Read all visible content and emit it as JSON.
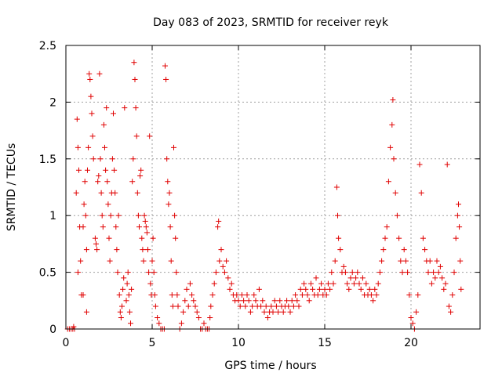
{
  "chart_data": {
    "type": "scatter",
    "title": "Day 083 of 2023, SRMTID for receiver reyk",
    "xlabel": "GPS time / hours",
    "ylabel": "SRMTID / TECUs",
    "xlim": [
      0,
      24
    ],
    "ylim": [
      0,
      2.5
    ],
    "xticks": [
      0,
      5,
      10,
      15,
      20
    ],
    "xtick_labels": [
      "0",
      "5",
      "10",
      "15",
      "20"
    ],
    "yticks": [
      0,
      0.5,
      1,
      1.5,
      2,
      2.5
    ],
    "ytick_labels": [
      "0",
      "0.5",
      "1",
      "1.5",
      "2",
      "2.5"
    ],
    "grid": true,
    "marker": "+",
    "marker_color": "#e00000",
    "series": [
      {
        "name": "SRMTID",
        "points": [
          [
            0.1,
            0.0
          ],
          [
            0.2,
            0.0
          ],
          [
            0.3,
            0.0
          ],
          [
            0.4,
            0.0
          ],
          [
            0.5,
            0.0
          ],
          [
            0.45,
            0.02
          ],
          [
            0.6,
            1.2
          ],
          [
            0.65,
            1.85
          ],
          [
            0.7,
            1.6
          ],
          [
            0.75,
            1.4
          ],
          [
            0.8,
            0.9
          ],
          [
            0.85,
            0.6
          ],
          [
            0.9,
            0.3
          ],
          [
            0.7,
            0.5
          ],
          [
            1.0,
            0.9
          ],
          [
            1.05,
            1.1
          ],
          [
            1.1,
            1.3
          ],
          [
            1.15,
            1.0
          ],
          [
            1.2,
            0.7
          ],
          [
            1.25,
            1.4
          ],
          [
            1.3,
            1.6
          ],
          [
            1.35,
            2.25
          ],
          [
            1.4,
            2.2
          ],
          [
            1.45,
            2.05
          ],
          [
            1.5,
            1.9
          ],
          [
            1.55,
            1.7
          ],
          [
            1.6,
            1.5
          ],
          [
            1.0,
            0.3
          ],
          [
            1.2,
            0.15
          ],
          [
            1.7,
            0.8
          ],
          [
            1.75,
            0.75
          ],
          [
            1.8,
            0.7
          ],
          [
            1.85,
            1.3
          ],
          [
            1.9,
            1.35
          ],
          [
            1.95,
            2.25
          ],
          [
            2.0,
            1.5
          ],
          [
            2.05,
            1.2
          ],
          [
            2.1,
            1.0
          ],
          [
            2.15,
            0.9
          ],
          [
            2.2,
            1.8
          ],
          [
            2.25,
            1.6
          ],
          [
            2.3,
            1.4
          ],
          [
            2.35,
            1.95
          ],
          [
            2.4,
            1.3
          ],
          [
            2.45,
            1.1
          ],
          [
            2.5,
            0.8
          ],
          [
            2.55,
            0.6
          ],
          [
            2.6,
            1.0
          ],
          [
            2.65,
            1.2
          ],
          [
            2.7,
            1.5
          ],
          [
            2.75,
            1.9
          ],
          [
            2.8,
            1.4
          ],
          [
            2.85,
            1.2
          ],
          [
            2.9,
            0.9
          ],
          [
            2.95,
            0.7
          ],
          [
            3.0,
            0.5
          ],
          [
            3.05,
            1.0
          ],
          [
            3.1,
            0.3
          ],
          [
            3.15,
            0.15
          ],
          [
            3.2,
            0.1
          ],
          [
            3.25,
            0.2
          ],
          [
            3.3,
            0.35
          ],
          [
            3.35,
            0.45
          ],
          [
            3.4,
            1.95
          ],
          [
            3.5,
            0.25
          ],
          [
            3.55,
            0.4
          ],
          [
            3.6,
            0.5
          ],
          [
            3.65,
            0.3
          ],
          [
            3.7,
            0.15
          ],
          [
            3.75,
            0.05
          ],
          [
            3.8,
            0.35
          ],
          [
            3.85,
            1.3
          ],
          [
            3.9,
            1.5
          ],
          [
            3.95,
            2.35
          ],
          [
            4.0,
            2.2
          ],
          [
            4.05,
            1.95
          ],
          [
            4.1,
            1.7
          ],
          [
            4.15,
            1.2
          ],
          [
            4.2,
            1.0
          ],
          [
            4.25,
            0.9
          ],
          [
            4.3,
            1.35
          ],
          [
            4.35,
            1.4
          ],
          [
            4.4,
            0.8
          ],
          [
            4.45,
            0.7
          ],
          [
            4.5,
            0.6
          ],
          [
            4.55,
            1.0
          ],
          [
            4.6,
            0.95
          ],
          [
            4.65,
            0.9
          ],
          [
            4.7,
            0.85
          ],
          [
            4.75,
            0.7
          ],
          [
            4.8,
            0.5
          ],
          [
            4.85,
            1.7
          ],
          [
            4.9,
            0.4
          ],
          [
            4.95,
            0.3
          ],
          [
            5.0,
            0.6
          ],
          [
            5.05,
            0.8
          ],
          [
            5.1,
            0.5
          ],
          [
            5.15,
            0.3
          ],
          [
            5.2,
            0.2
          ],
          [
            5.3,
            0.1
          ],
          [
            5.4,
            0.05
          ],
          [
            5.5,
            0.0
          ],
          [
            5.6,
            0.0
          ],
          [
            5.7,
            0.0
          ],
          [
            5.75,
            2.32
          ],
          [
            5.8,
            2.2
          ],
          [
            5.85,
            1.5
          ],
          [
            5.9,
            1.3
          ],
          [
            5.95,
            1.1
          ],
          [
            6.0,
            1.2
          ],
          [
            6.05,
            0.9
          ],
          [
            6.1,
            0.6
          ],
          [
            6.15,
            0.3
          ],
          [
            6.2,
            0.2
          ],
          [
            6.25,
            1.6
          ],
          [
            6.3,
            1.0
          ],
          [
            6.35,
            0.8
          ],
          [
            6.4,
            0.5
          ],
          [
            6.45,
            0.3
          ],
          [
            6.5,
            0.2
          ],
          [
            6.6,
            0.0
          ],
          [
            6.7,
            0.05
          ],
          [
            6.8,
            0.15
          ],
          [
            6.9,
            0.25
          ],
          [
            7.0,
            0.35
          ],
          [
            7.1,
            0.2
          ],
          [
            7.2,
            0.4
          ],
          [
            7.3,
            0.3
          ],
          [
            7.4,
            0.25
          ],
          [
            7.5,
            0.2
          ],
          [
            7.6,
            0.15
          ],
          [
            7.7,
            0.1
          ],
          [
            7.8,
            0.0
          ],
          [
            7.9,
            0.0
          ],
          [
            8.0,
            0.05
          ],
          [
            8.1,
            0.0
          ],
          [
            8.2,
            0.0
          ],
          [
            8.3,
            0.0
          ],
          [
            8.35,
            0.1
          ],
          [
            8.4,
            0.2
          ],
          [
            8.5,
            0.3
          ],
          [
            8.6,
            0.4
          ],
          [
            8.7,
            0.5
          ],
          [
            8.8,
            0.9
          ],
          [
            8.85,
            0.95
          ],
          [
            8.9,
            0.6
          ],
          [
            9.0,
            0.7
          ],
          [
            9.1,
            0.55
          ],
          [
            9.2,
            0.5
          ],
          [
            9.3,
            0.6
          ],
          [
            9.4,
            0.45
          ],
          [
            9.5,
            0.35
          ],
          [
            9.6,
            0.4
          ],
          [
            9.7,
            0.3
          ],
          [
            9.8,
            0.25
          ],
          [
            9.9,
            0.3
          ],
          [
            10.0,
            0.25
          ],
          [
            10.1,
            0.2
          ],
          [
            10.2,
            0.3
          ],
          [
            10.3,
            0.25
          ],
          [
            10.4,
            0.2
          ],
          [
            10.5,
            0.3
          ],
          [
            10.6,
            0.25
          ],
          [
            10.7,
            0.15
          ],
          [
            10.8,
            0.2
          ],
          [
            10.9,
            0.3
          ],
          [
            11.0,
            0.25
          ],
          [
            11.1,
            0.2
          ],
          [
            11.2,
            0.35
          ],
          [
            11.3,
            0.2
          ],
          [
            11.4,
            0.25
          ],
          [
            11.5,
            0.15
          ],
          [
            11.6,
            0.2
          ],
          [
            11.7,
            0.1
          ],
          [
            11.8,
            0.15
          ],
          [
            11.9,
            0.2
          ],
          [
            12.0,
            0.15
          ],
          [
            12.1,
            0.25
          ],
          [
            12.2,
            0.2
          ],
          [
            12.3,
            0.15
          ],
          [
            12.4,
            0.25
          ],
          [
            12.5,
            0.2
          ],
          [
            12.6,
            0.15
          ],
          [
            12.7,
            0.2
          ],
          [
            12.8,
            0.25
          ],
          [
            12.9,
            0.2
          ],
          [
            13.0,
            0.15
          ],
          [
            13.1,
            0.25
          ],
          [
            13.2,
            0.2
          ],
          [
            13.3,
            0.3
          ],
          [
            13.4,
            0.25
          ],
          [
            13.5,
            0.2
          ],
          [
            13.6,
            0.35
          ],
          [
            13.7,
            0.3
          ],
          [
            13.8,
            0.4
          ],
          [
            13.9,
            0.35
          ],
          [
            14.0,
            0.3
          ],
          [
            14.1,
            0.25
          ],
          [
            14.2,
            0.4
          ],
          [
            14.3,
            0.35
          ],
          [
            14.4,
            0.3
          ],
          [
            14.5,
            0.45
          ],
          [
            14.6,
            0.3
          ],
          [
            14.7,
            0.35
          ],
          [
            14.8,
            0.4
          ],
          [
            14.9,
            0.3
          ],
          [
            15.0,
            0.35
          ],
          [
            15.1,
            0.3
          ],
          [
            15.2,
            0.4
          ],
          [
            15.3,
            0.35
          ],
          [
            15.4,
            0.5
          ],
          [
            15.5,
            0.4
          ],
          [
            15.6,
            0.6
          ],
          [
            15.7,
            1.25
          ],
          [
            15.75,
            1.0
          ],
          [
            15.8,
            0.8
          ],
          [
            15.9,
            0.7
          ],
          [
            16.0,
            0.5
          ],
          [
            16.1,
            0.55
          ],
          [
            16.2,
            0.5
          ],
          [
            16.3,
            0.4
          ],
          [
            16.4,
            0.35
          ],
          [
            16.5,
            0.45
          ],
          [
            16.6,
            0.5
          ],
          [
            16.7,
            0.4
          ],
          [
            16.8,
            0.45
          ],
          [
            16.9,
            0.5
          ],
          [
            17.0,
            0.4
          ],
          [
            17.1,
            0.35
          ],
          [
            17.2,
            0.45
          ],
          [
            17.3,
            0.3
          ],
          [
            17.4,
            0.4
          ],
          [
            17.5,
            0.3
          ],
          [
            17.6,
            0.35
          ],
          [
            17.7,
            0.3
          ],
          [
            17.8,
            0.25
          ],
          [
            17.9,
            0.35
          ],
          [
            18.0,
            0.3
          ],
          [
            18.1,
            0.4
          ],
          [
            18.2,
            0.5
          ],
          [
            18.3,
            0.6
          ],
          [
            18.4,
            0.7
          ],
          [
            18.5,
            0.8
          ],
          [
            18.6,
            0.9
          ],
          [
            18.7,
            1.3
          ],
          [
            18.8,
            1.6
          ],
          [
            18.9,
            1.8
          ],
          [
            18.95,
            2.02
          ],
          [
            19.0,
            1.5
          ],
          [
            19.1,
            1.2
          ],
          [
            19.2,
            1.0
          ],
          [
            19.3,
            0.8
          ],
          [
            19.4,
            0.6
          ],
          [
            19.5,
            0.5
          ],
          [
            19.6,
            0.7
          ],
          [
            19.7,
            0.6
          ],
          [
            19.8,
            0.5
          ],
          [
            19.9,
            0.3
          ],
          [
            20.0,
            0.1
          ],
          [
            20.1,
            0.05
          ],
          [
            20.2,
            0.0
          ],
          [
            20.3,
            0.15
          ],
          [
            20.4,
            0.3
          ],
          [
            20.5,
            1.45
          ],
          [
            20.6,
            1.2
          ],
          [
            20.7,
            0.8
          ],
          [
            20.8,
            0.7
          ],
          [
            20.9,
            0.6
          ],
          [
            21.0,
            0.5
          ],
          [
            21.1,
            0.6
          ],
          [
            21.2,
            0.4
          ],
          [
            21.3,
            0.5
          ],
          [
            21.4,
            0.45
          ],
          [
            21.5,
            0.6
          ],
          [
            21.6,
            0.5
          ],
          [
            21.7,
            0.55
          ],
          [
            21.8,
            0.45
          ],
          [
            21.9,
            0.35
          ],
          [
            22.0,
            0.4
          ],
          [
            22.1,
            1.45
          ],
          [
            22.2,
            0.2
          ],
          [
            22.3,
            0.15
          ],
          [
            22.4,
            0.3
          ],
          [
            22.5,
            0.5
          ],
          [
            22.6,
            0.8
          ],
          [
            22.7,
            1.0
          ],
          [
            22.75,
            1.1
          ],
          [
            22.8,
            0.9
          ],
          [
            22.85,
            0.6
          ],
          [
            22.9,
            0.35
          ]
        ]
      }
    ]
  }
}
